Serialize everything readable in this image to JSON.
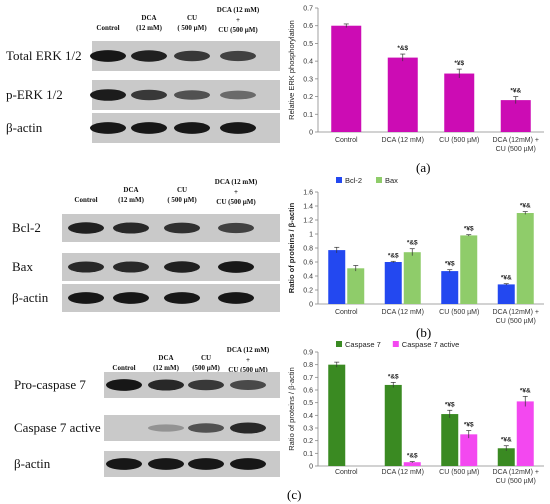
{
  "panels": [
    {
      "letter": "(a)",
      "blot": {
        "lane_headers": [
          "Control",
          "DCA\n(12 mM)",
          "CU\n( 500 µM)",
          "DCA (12 mM)\n+\nCU (500 µM)"
        ],
        "rows": [
          "Total ERK 1/2",
          "p-ERK 1/2",
          "β-actin"
        ]
      }
    },
    {
      "letter": "(b)",
      "blot": {
        "lane_headers": [
          "Control",
          "DCA\n(12 mM)",
          "CU\n( 500 µM)",
          "DCA (12 mM)\n+\nCU (500 µM)"
        ],
        "rows": [
          "Bcl-2",
          "Bax",
          "β-actin"
        ]
      }
    },
    {
      "letter": "(c)",
      "blot": {
        "lane_headers": [
          "Control",
          "DCA\n(12 mM)",
          "CU\n(500 µM)",
          "DCA (12 mM)\n+\nCU (500 µM)"
        ],
        "rows": [
          "Pro-caspase 7",
          "Caspase 7 active",
          "β-actin"
        ]
      }
    }
  ],
  "colors": {
    "magenta": "#cc0cb4",
    "blue": "#2348f0",
    "green_light": "#8fcc6a",
    "green_dark": "#3a8a22",
    "pink": "#f348f0"
  },
  "chart_data": [
    {
      "type": "bar",
      "categories": [
        "Control",
        "DCA (12 mM)",
        "CU (500 µM)",
        "DCA (12mM) +\nCU (500 µM)"
      ],
      "series": [
        {
          "values": [
            0.6,
            0.42,
            0.33,
            0.18
          ],
          "errors": [
            0.01,
            0.02,
            0.025,
            0.02
          ],
          "color": "#cc0cb4"
        }
      ],
      "annotations": [
        [
          "",
          "*&$",
          "*¥$",
          "*¥&"
        ]
      ],
      "ylabel": "Relative ERK phosphorylation",
      "ylim": [
        0,
        0.7
      ],
      "yticks": [
        0,
        0.1,
        0.2,
        0.3,
        0.4,
        0.5,
        0.6,
        0.7
      ],
      "legend": null
    },
    {
      "type": "bar",
      "categories": [
        "Control",
        "DCA (12 mM)",
        "CU (500 µM)",
        "DCA (12mM) +\nCU (500 µM)"
      ],
      "series": [
        {
          "name": "Bcl-2",
          "values": [
            0.77,
            0.6,
            0.47,
            0.28
          ],
          "errors": [
            0.04,
            0.01,
            0.02,
            0.01
          ],
          "color": "#2348f0"
        },
        {
          "name": "Bax",
          "values": [
            0.51,
            0.74,
            0.98,
            1.3
          ],
          "errors": [
            0.04,
            0.05,
            0.01,
            0.02
          ],
          "color": "#8fcc6a"
        }
      ],
      "annotations": [
        [
          "",
          "*&$",
          "*¥$",
          "*¥&"
        ],
        [
          "",
          "*&$",
          "*¥$",
          "*¥&"
        ]
      ],
      "ylabel": "Ratio of proteins / β-actin",
      "ylim": [
        0,
        1.6
      ],
      "yticks": [
        0,
        0.2,
        0.4,
        0.6,
        0.8,
        1,
        1.2,
        1.4,
        1.6
      ],
      "legend": "top-left"
    },
    {
      "type": "bar",
      "categories": [
        "Control",
        "DCA (12 mM)",
        "CU (500 µM)",
        "DCA (12mM) +\nCU (500 µM)"
      ],
      "series": [
        {
          "name": "Caspase 7",
          "values": [
            0.8,
            0.64,
            0.41,
            0.14
          ],
          "errors": [
            0.02,
            0.02,
            0.03,
            0.02
          ],
          "color": "#3a8a22"
        },
        {
          "name": "Caspase 7 active",
          "values": [
            0,
            0.03,
            0.25,
            0.51
          ],
          "errors": [
            0,
            0.005,
            0.03,
            0.04
          ],
          "color": "#f348f0"
        }
      ],
      "annotations": [
        [
          "",
          "*&$",
          "*¥$",
          "*¥&"
        ],
        [
          "",
          "*&$",
          "*¥$",
          "*¥&"
        ]
      ],
      "ylabel": "Ratio of proteins / β-actin",
      "ylim": [
        0,
        0.9
      ],
      "yticks": [
        0,
        0.1,
        0.2,
        0.3,
        0.4,
        0.5,
        0.6,
        0.7,
        0.8,
        0.9
      ],
      "legend": "top-left"
    }
  ]
}
